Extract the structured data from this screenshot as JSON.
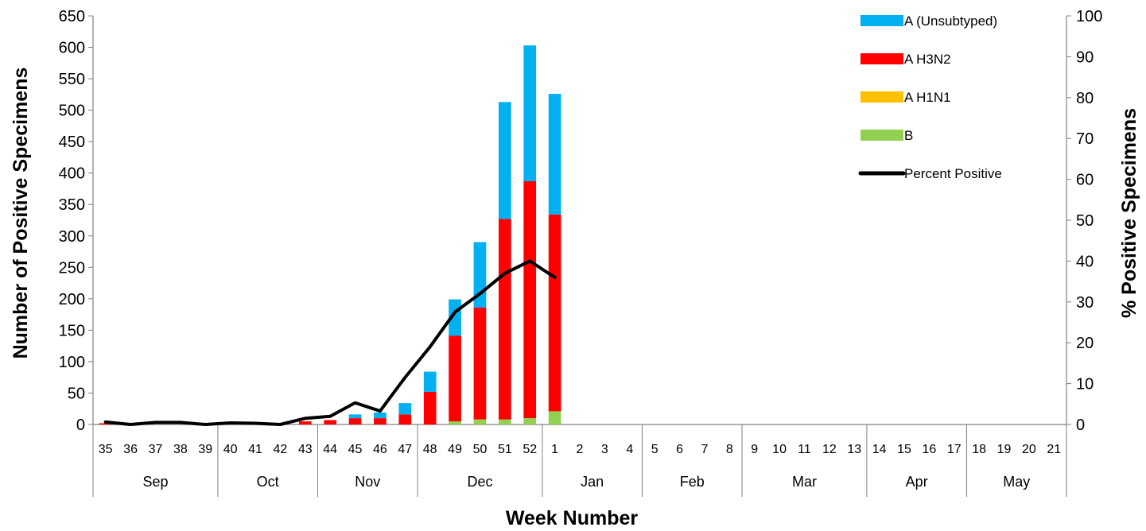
{
  "chart_data": {
    "type": "bar",
    "stacked": true,
    "title": "",
    "xlabel": "Week Number",
    "ylabel": "Number of Positive Specimens",
    "y2label": "% Positive Specimens",
    "ylim": [
      0,
      650
    ],
    "y2lim": [
      0,
      100
    ],
    "yticks": [
      0,
      50,
      100,
      150,
      200,
      250,
      300,
      350,
      400,
      450,
      500,
      550,
      600,
      650
    ],
    "y2ticks": [
      0,
      10,
      20,
      30,
      40,
      50,
      60,
      70,
      80,
      90,
      100
    ],
    "grid": false,
    "legend_position": "top-right",
    "categories": [
      "35",
      "36",
      "37",
      "38",
      "39",
      "40",
      "41",
      "42",
      "43",
      "44",
      "45",
      "46",
      "47",
      "48",
      "49",
      "50",
      "51",
      "52",
      "1",
      "2",
      "3",
      "4",
      "5",
      "6",
      "7",
      "8",
      "9",
      "10",
      "11",
      "12",
      "13",
      "14",
      "15",
      "16",
      "17",
      "18",
      "19",
      "20",
      "21"
    ],
    "months": [
      {
        "label": "Sep",
        "weeks": 5
      },
      {
        "label": "Oct",
        "weeks": 4
      },
      {
        "label": "Nov",
        "weeks": 4
      },
      {
        "label": "Dec",
        "weeks": 5
      },
      {
        "label": "Jan",
        "weeks": 4
      },
      {
        "label": "Feb",
        "weeks": 4
      },
      {
        "label": "Mar",
        "weeks": 5
      },
      {
        "label": "Apr",
        "weeks": 4
      },
      {
        "label": "May",
        "weeks": 4
      }
    ],
    "series": [
      {
        "name": "B",
        "kind": "bar",
        "color": "#92d050",
        "values": [
          0,
          0,
          0,
          0,
          0,
          0,
          0,
          0,
          0,
          0,
          0,
          0,
          0,
          0,
          5,
          8,
          8,
          10,
          21,
          0,
          0,
          0,
          0,
          0,
          0,
          0,
          0,
          0,
          0,
          0,
          0,
          0,
          0,
          0,
          0,
          0,
          0,
          0,
          0
        ]
      },
      {
        "name": "A H1N1",
        "kind": "bar",
        "color": "#ffc000",
        "values": [
          0,
          0,
          0,
          0,
          0,
          0,
          0,
          0,
          0,
          0,
          0,
          0,
          0,
          0,
          0,
          0,
          0,
          0,
          0,
          0,
          0,
          0,
          0,
          0,
          0,
          0,
          0,
          0,
          0,
          0,
          0,
          0,
          0,
          0,
          0,
          0,
          0,
          0,
          0
        ]
      },
      {
        "name": "A H3N2",
        "kind": "bar",
        "color": "#ff0000",
        "values": [
          2,
          0,
          0,
          0,
          0,
          0,
          0,
          0,
          5,
          7,
          10,
          10,
          16,
          52,
          136,
          178,
          319,
          377,
          313,
          0,
          0,
          0,
          0,
          0,
          0,
          0,
          0,
          0,
          0,
          0,
          0,
          0,
          0,
          0,
          0,
          0,
          0,
          0,
          0
        ]
      },
      {
        "name": "A (Unsubtyped)",
        "kind": "bar",
        "color": "#00b0f0",
        "values": [
          0,
          0,
          0,
          0,
          0,
          0,
          0,
          0,
          0,
          0,
          6,
          9,
          18,
          32,
          58,
          104,
          186,
          216,
          192,
          0,
          0,
          0,
          0,
          0,
          0,
          0,
          0,
          0,
          0,
          0,
          0,
          0,
          0,
          0,
          0,
          0,
          0,
          0,
          0
        ]
      },
      {
        "name": "Percent Positive",
        "kind": "line",
        "axis": "right",
        "color": "#000000",
        "values": [
          0.6,
          0,
          0.5,
          0.5,
          0,
          0.4,
          0.3,
          0,
          1.5,
          2,
          5.3,
          3.3,
          11.5,
          19,
          27.5,
          32,
          37,
          40,
          36,
          null,
          null,
          null,
          null,
          null,
          null,
          null,
          null,
          null,
          null,
          null,
          null,
          null,
          null,
          null,
          null,
          null,
          null,
          null,
          null
        ]
      }
    ],
    "legend_order": [
      "A (Unsubtyped)",
      "A H3N2",
      "A H1N1",
      "B",
      "Percent Positive"
    ]
  }
}
